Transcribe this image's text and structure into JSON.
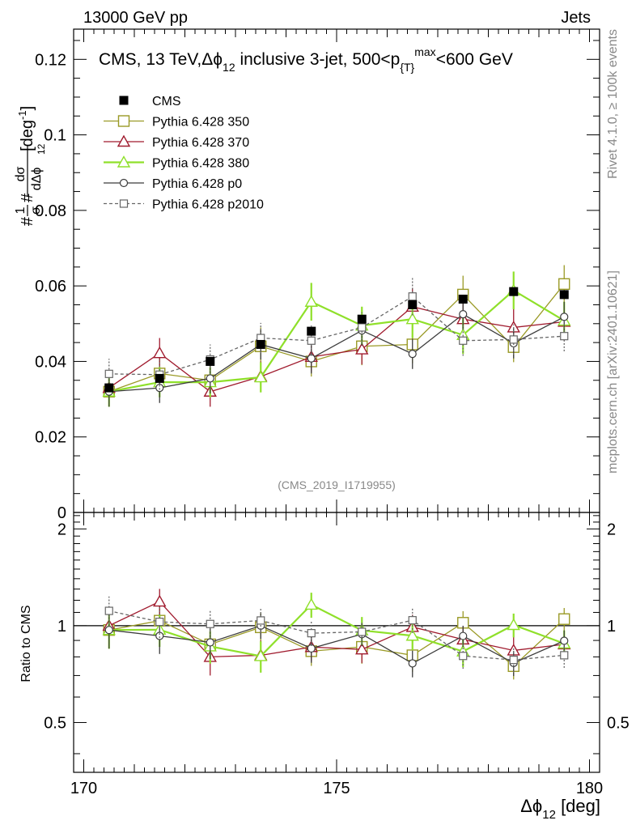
{
  "header": {
    "left": "13000 GeV pp",
    "right": "Jets"
  },
  "side_text": {
    "rivet": "Rivet 4.1.0, ≥ 100k events",
    "mcplots": "mcplots.cern.ch [arXiv:2401.10621]"
  },
  "watermark": "(CMS_2019_I1719955)",
  "colors": {
    "cms": "#000000",
    "p350": "#9a9a26",
    "p370": "#a01b2e",
    "p380": "#8fe02a",
    "p0": "#3c3c3c",
    "p2010": "#666666"
  },
  "chart_data": {
    "type": "line",
    "title": {
      "text": "CMS, 13 TeV,Δϕ",
      "sub1": "12",
      "mid": " inclusive 3-jet, 500<p",
      "sub2": "{T}",
      "sup": "max",
      "end": "<600 GeV"
    },
    "ylabel": {
      "frac1_num": "1",
      "frac1_den": "σ",
      "frac2_num": "dσ",
      "frac2_den": "dΔϕ",
      "den_sub": "12",
      "prefix": "#",
      "hash2": "#",
      "unit": "[deg",
      "unit_sup": "-1",
      "unit_end": "]"
    },
    "xlabel": {
      "main": "Δϕ",
      "sub": "12",
      "unit": " [deg]"
    },
    "ratio_ylabel": "Ratio to CMS",
    "xlim": [
      169.8,
      180.2
    ],
    "ylim": [
      0,
      0.128
    ],
    "ratio_ylim": [
      0.35,
      2.25
    ],
    "x_ticks": [
      "170",
      "175",
      "180"
    ],
    "y_ticks": [
      "0",
      "0.02",
      "0.04",
      "0.06",
      "0.08",
      "0.1",
      "0.12"
    ],
    "ratio_y_ticks": [
      "0.5",
      "1",
      "2"
    ],
    "x": [
      170.5,
      171.5,
      172.5,
      173.5,
      174.5,
      175.5,
      176.5,
      177.5,
      178.5,
      179.5
    ],
    "series": [
      {
        "name": "CMS",
        "key": "cms",
        "marker": "filled-square",
        "dashed": false,
        "values": [
          0.033,
          0.0355,
          0.04,
          0.0445,
          0.048,
          0.0512,
          0.055,
          0.0565,
          0.0585,
          0.0577
        ],
        "errors": [
          0.0006,
          0.0006,
          0.0007,
          0.0007,
          0.0008,
          0.0008,
          0.0009,
          0.0009,
          0.001,
          0.001
        ]
      },
      {
        "name": "Pythia 6.428 350",
        "key": "p350",
        "marker": "open-square",
        "dashed": false,
        "values": [
          0.032,
          0.0368,
          0.035,
          0.044,
          0.04,
          0.044,
          0.0445,
          0.0577,
          0.0438,
          0.0605
        ],
        "errors": [
          0.004,
          0.004,
          0.004,
          0.005,
          0.004,
          0.005,
          0.005,
          0.005,
          0.004,
          0.005
        ]
      },
      {
        "name": "Pythia 6.428 370",
        "key": "p370",
        "marker": "open-triangle",
        "dashed": false,
        "values": [
          0.033,
          0.0422,
          0.032,
          0.036,
          0.0412,
          0.0432,
          0.0545,
          0.0512,
          0.049,
          0.0505
        ],
        "errors": [
          0.004,
          0.004,
          0.004,
          0.004,
          0.004,
          0.004,
          0.005,
          0.005,
          0.005,
          0.005
        ]
      },
      {
        "name": "Pythia 6.428 380",
        "key": "p380",
        "marker": "open-triangle",
        "dashed": false,
        "values": [
          0.032,
          0.0345,
          0.0345,
          0.0358,
          0.0558,
          0.0495,
          0.0512,
          0.047,
          0.0588,
          0.0508
        ],
        "errors": [
          0.004,
          0.004,
          0.004,
          0.004,
          0.005,
          0.005,
          0.005,
          0.005,
          0.005,
          0.005
        ]
      },
      {
        "name": "Pythia 6.428 p0",
        "key": "p0",
        "marker": "open-circle",
        "dashed": false,
        "values": [
          0.032,
          0.033,
          0.0355,
          0.0445,
          0.0408,
          0.0482,
          0.042,
          0.0525,
          0.0448,
          0.0518
        ],
        "errors": [
          0.004,
          0.004,
          0.004,
          0.004,
          0.004,
          0.004,
          0.004,
          0.004,
          0.004,
          0.004
        ]
      },
      {
        "name": "Pythia 6.428 p2010",
        "key": "p2010",
        "marker": "open-square-small",
        "dashed": true,
        "values": [
          0.0367,
          0.0365,
          0.0405,
          0.0462,
          0.0455,
          0.049,
          0.0572,
          0.0455,
          0.0458,
          0.0467
        ],
        "errors": [
          0.004,
          0.004,
          0.004,
          0.004,
          0.004,
          0.004,
          0.005,
          0.004,
          0.004,
          0.004
        ]
      }
    ]
  }
}
